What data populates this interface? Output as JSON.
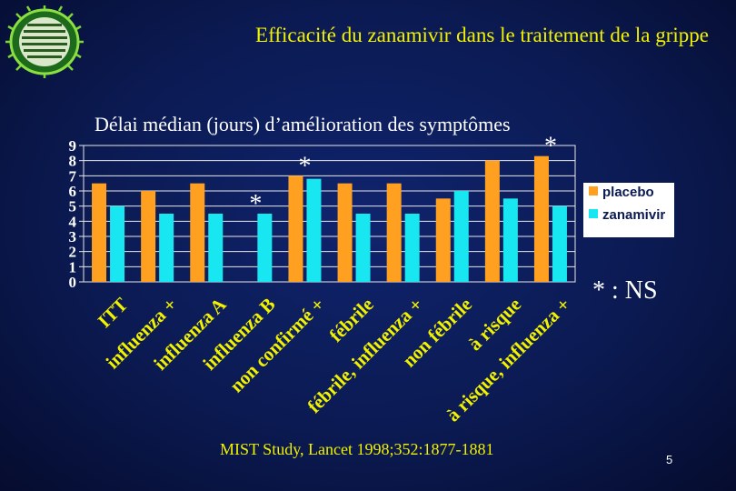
{
  "slide": {
    "title": "Efficacité du zanamivir dans le traitement de la grippe",
    "citation": "MIST Study, Lancet 1998;352:1877-1881",
    "page_number": "5"
  },
  "chart_data": {
    "type": "bar",
    "title": "Délai médian (jours) d’amélioration des symptômes",
    "xlabel": "",
    "ylabel": "",
    "ylim": [
      0,
      9
    ],
    "y_ticks": [
      "0",
      "1",
      "2",
      "3",
      "4",
      "5",
      "6",
      "7",
      "8",
      "9"
    ],
    "grid": true,
    "categories": [
      "ITT",
      "influenza +",
      "influenza A",
      "influenza B",
      "non confirmé +",
      "fébrile",
      "fébrile, influenza +",
      "non fébrile",
      "à risque",
      "à risque, influenza +"
    ],
    "series": [
      {
        "name": "placebo",
        "color": "#ffa020",
        "values": [
          6.5,
          6.0,
          6.5,
          0,
          7.0,
          6.5,
          6.5,
          5.5,
          8.0,
          8.3
        ]
      },
      {
        "name": "zanamivir",
        "color": "#18e6f0",
        "values": [
          5.0,
          4.5,
          4.5,
          4.5,
          6.8,
          4.5,
          4.5,
          6.0,
          5.5,
          5.0
        ]
      }
    ],
    "annotations": [
      {
        "text": "*",
        "category_index": 3
      },
      {
        "text": "*",
        "category_index": 4
      },
      {
        "text": "*",
        "category_index": 9
      }
    ],
    "legend": {
      "placement": "right"
    },
    "footnote": "* : NS"
  }
}
